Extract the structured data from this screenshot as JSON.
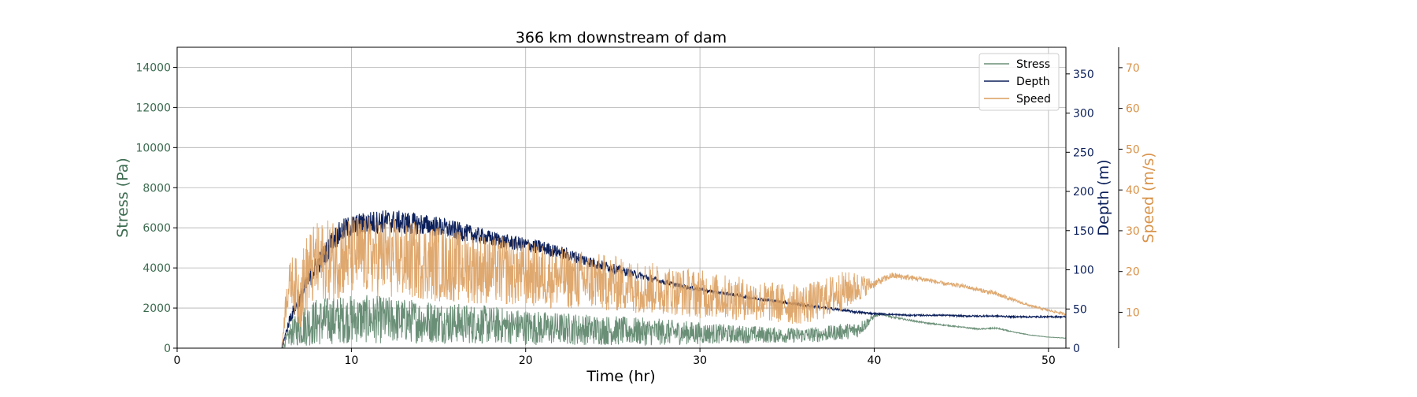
{
  "chart_data": {
    "type": "line",
    "title": "366 km downstream of dam",
    "xlabel": "Time (hr)",
    "xlim": [
      0,
      51
    ],
    "x_ticks": [
      0,
      10,
      20,
      30,
      40,
      50
    ],
    "grid": true,
    "legend_position": "top-right",
    "axes": {
      "stress": {
        "label": "Stress (Pa)",
        "ylim": [
          0,
          15000
        ],
        "ticks": [
          0,
          2000,
          4000,
          6000,
          8000,
          10000,
          12000,
          14000
        ],
        "color": "#3b6b4f"
      },
      "depth": {
        "label": "Depth (m)",
        "ylim": [
          0,
          384
        ],
        "ticks": [
          0,
          50,
          100,
          150,
          200,
          250,
          300,
          350
        ],
        "color": "#0b1f5a"
      },
      "speed": {
        "label": "Speed (m/s)",
        "ylim": [
          1.2,
          75
        ],
        "ticks": [
          10,
          20,
          30,
          40,
          50,
          60,
          70
        ],
        "color": "#d9934a"
      }
    },
    "series": [
      {
        "name": "Stress",
        "axis": "stress",
        "color": "#6a8f77",
        "x": [
          0,
          6,
          6.5,
          7,
          7.5,
          8,
          9,
          10,
          11,
          12,
          13,
          14,
          15,
          16,
          17,
          18,
          19,
          20,
          21,
          22,
          23,
          24,
          25,
          26,
          27,
          28,
          29,
          30,
          31,
          32,
          33,
          34,
          35,
          36,
          37,
          38,
          39,
          39.5,
          40,
          40.5,
          41,
          42,
          43,
          44,
          45,
          46,
          47,
          48,
          49,
          50,
          51
        ],
        "y": [
          0,
          0,
          700,
          1000,
          1200,
          1300,
          1400,
          1450,
          1450,
          1400,
          1380,
          1350,
          1300,
          1250,
          1200,
          1150,
          1100,
          1050,
          1000,
          980,
          950,
          920,
          880,
          850,
          820,
          800,
          780,
          750,
          720,
          700,
          680,
          660,
          640,
          650,
          700,
          800,
          900,
          1200,
          1600,
          1700,
          1550,
          1400,
          1250,
          1150,
          1050,
          950,
          1000,
          800,
          650,
          550,
          500
        ],
        "noise": [
          0,
          0,
          600,
          900,
          1100,
          1200,
          1200,
          1200,
          1200,
          1200,
          1100,
          1100,
          1050,
          1000,
          1000,
          950,
          900,
          900,
          850,
          800,
          800,
          750,
          750,
          700,
          700,
          650,
          600,
          550,
          500,
          450,
          450,
          400,
          380,
          380,
          380,
          400,
          400,
          300,
          80,
          50,
          50,
          40,
          40,
          30,
          30,
          30,
          40,
          20,
          15,
          10,
          10
        ]
      },
      {
        "name": "Depth",
        "axis": "depth",
        "color": "#0b1f5a",
        "x": [
          0,
          6,
          6.5,
          7,
          7.5,
          8,
          8.5,
          9,
          9.5,
          10,
          11,
          12,
          13,
          14,
          15,
          16,
          17,
          18,
          19,
          20,
          21,
          22,
          23,
          24,
          25,
          26,
          27,
          28,
          29,
          30,
          31,
          32,
          33,
          34,
          35,
          36,
          37,
          38,
          39,
          40,
          41,
          42,
          43,
          44,
          45,
          46,
          47,
          48,
          49,
          50,
          51
        ],
        "y": [
          0,
          0,
          40,
          60,
          85,
          105,
          120,
          140,
          150,
          155,
          160,
          162,
          160,
          158,
          155,
          150,
          145,
          140,
          135,
          132,
          128,
          122,
          115,
          108,
          102,
          96,
          90,
          84,
          79,
          75,
          71,
          68,
          64,
          61,
          58,
          55,
          52,
          49,
          46,
          44,
          43,
          42,
          42,
          42,
          41,
          41,
          41,
          40,
          40,
          40,
          40
        ],
        "noise": [
          0,
          0,
          8,
          10,
          12,
          14,
          15,
          15,
          15,
          15,
          15,
          15,
          15,
          14,
          13,
          12,
          11,
          10,
          10,
          9,
          9,
          8,
          8,
          7,
          6,
          5,
          4,
          3,
          3,
          2.5,
          2,
          2,
          2,
          2,
          2,
          2,
          1.5,
          1.5,
          1.5,
          1,
          1,
          1,
          1,
          1,
          1,
          1,
          1,
          1,
          1,
          1,
          1
        ]
      },
      {
        "name": "Speed",
        "axis": "speed",
        "color": "#dc9e5e",
        "x": [
          0,
          6,
          6.3,
          6.6,
          7,
          7.5,
          8,
          9,
          10,
          11,
          12,
          13,
          14,
          15,
          16,
          17,
          18,
          19,
          20,
          21,
          22,
          23,
          24,
          25,
          26,
          27,
          28,
          29,
          30,
          31,
          32,
          33,
          34,
          35,
          36,
          37,
          38,
          39,
          40,
          41,
          42,
          43,
          44,
          45,
          46,
          47,
          48,
          49,
          50,
          51
        ],
        "y": [
          1.2,
          1.2,
          15,
          18,
          14,
          20,
          22,
          23,
          24,
          24,
          23.5,
          23,
          22.5,
          22,
          21.5,
          21,
          20.5,
          20,
          19.5,
          19,
          18.5,
          18,
          17.5,
          17,
          16.5,
          16,
          15.5,
          15,
          14.5,
          14,
          13.5,
          13,
          12.5,
          12,
          12,
          13,
          15,
          16,
          17,
          19,
          18.5,
          18,
          17,
          16.5,
          15.5,
          14.5,
          13,
          11.5,
          10.5,
          9.5
        ],
        "noise": [
          0,
          0,
          5,
          6,
          9,
          10,
          10,
          10,
          10,
          10,
          10,
          10,
          9.5,
          9.5,
          9,
          9,
          8.5,
          8.5,
          8,
          8,
          7.5,
          7.5,
          7,
          7,
          6.5,
          6.5,
          6,
          6,
          6,
          5.5,
          5.5,
          5,
          5,
          5,
          5,
          5,
          5,
          4,
          1,
          0.8,
          0.7,
          0.6,
          0.5,
          0.5,
          0.5,
          0.6,
          0.4,
          0.3,
          0.3,
          0.3
        ]
      }
    ]
  }
}
